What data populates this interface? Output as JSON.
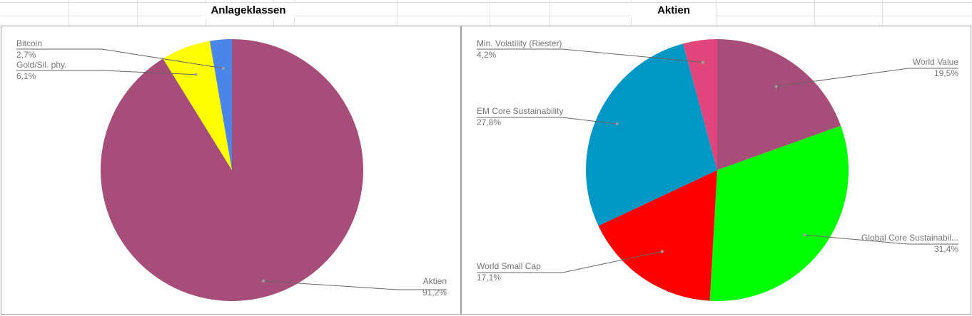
{
  "headers": {
    "left": "Anlageklassen",
    "right": "Aktien"
  },
  "chart_data": [
    {
      "type": "pie",
      "title": "",
      "slices": [
        {
          "label": "Aktien",
          "value": 91.2,
          "display": "91,2%",
          "color": "#a64d79"
        },
        {
          "label": "Gold/Sil. phy.",
          "value": 6.1,
          "display": "6,1%",
          "color": "#ffff00"
        },
        {
          "label": "Bitcoin",
          "value": 2.7,
          "display": "2,7%",
          "color": "#4a86e8"
        }
      ]
    },
    {
      "type": "pie",
      "title": "",
      "slices": [
        {
          "label": "World Value",
          "value": 19.5,
          "display": "19,5%",
          "color": "#a64d79"
        },
        {
          "label": "Global Core Sustainabil...",
          "value": 31.4,
          "display": "31,4%",
          "color": "#00ff00"
        },
        {
          "label": "World Small Cap",
          "value": 17.1,
          "display": "17,1%",
          "color": "#ff0000"
        },
        {
          "label": "EM Core Sustainability",
          "value": 27.8,
          "display": "27,8%",
          "color": "#0097c4"
        },
        {
          "label": "Min. Volatility (Riester)",
          "value": 4.2,
          "display": "4,2%",
          "color": "#e0457b"
        }
      ]
    }
  ]
}
